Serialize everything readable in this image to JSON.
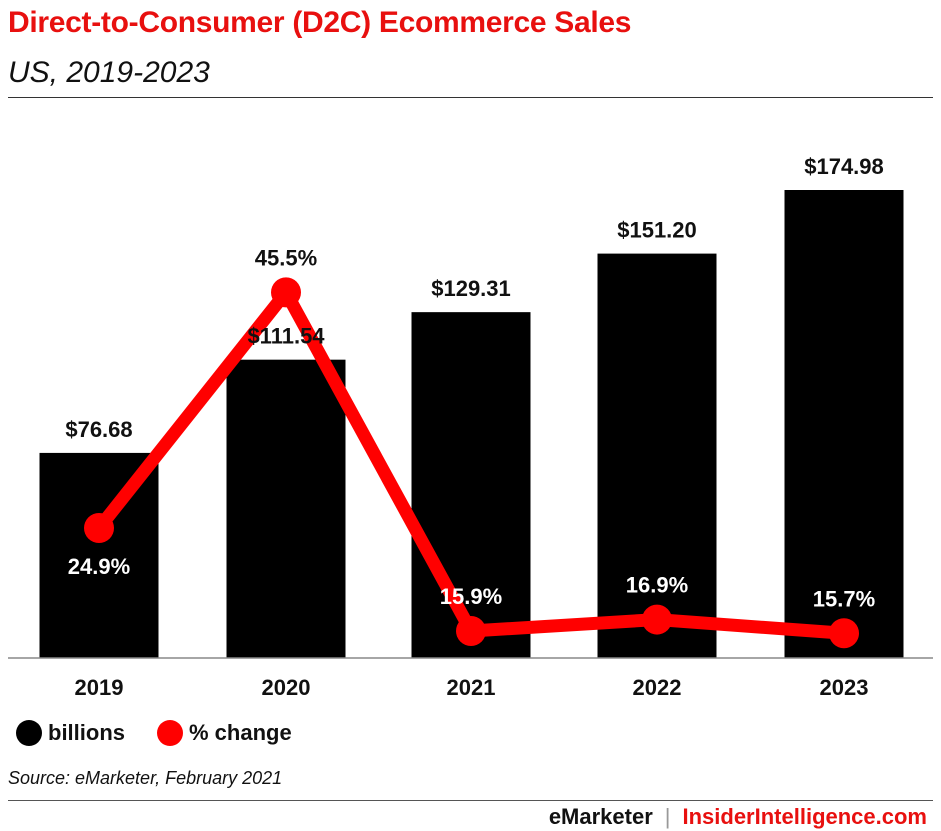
{
  "header": {
    "title": "Direct-to-Consumer (D2C) Ecommerce Sales",
    "subtitle": "US, 2019-2023"
  },
  "legend": {
    "bar_label": "billions",
    "line_label": "% change"
  },
  "source": "Source: eMarketer, February 2021",
  "footer": {
    "brand1": "eMarketer",
    "separator": "|",
    "brand2": "InsiderIntelligence.com"
  },
  "colors": {
    "accent": "#e8100f",
    "bar": "#000000",
    "line": "#ff0000",
    "text": "#111111"
  },
  "chart_data": {
    "type": "bar",
    "categories": [
      "2019",
      "2020",
      "2021",
      "2022",
      "2023"
    ],
    "series": [
      {
        "name": "billions",
        "type": "bar",
        "values": [
          76.68,
          111.54,
          129.31,
          151.2,
          174.98
        ],
        "labels": [
          "$76.68",
          "$111.54",
          "$129.31",
          "$151.20",
          "$174.98"
        ]
      },
      {
        "name": "% change",
        "type": "line",
        "values": [
          24.9,
          45.5,
          15.9,
          16.9,
          15.7
        ],
        "labels": [
          "24.9%",
          "45.5%",
          "15.9%",
          "16.9%",
          "15.7%"
        ]
      }
    ],
    "title": "Direct-to-Consumer (D2C) Ecommerce Sales",
    "subtitle": "US, 2019-2023",
    "xlabel": "",
    "ylabel": "",
    "grid": false,
    "legend_position": "bottom-left"
  }
}
